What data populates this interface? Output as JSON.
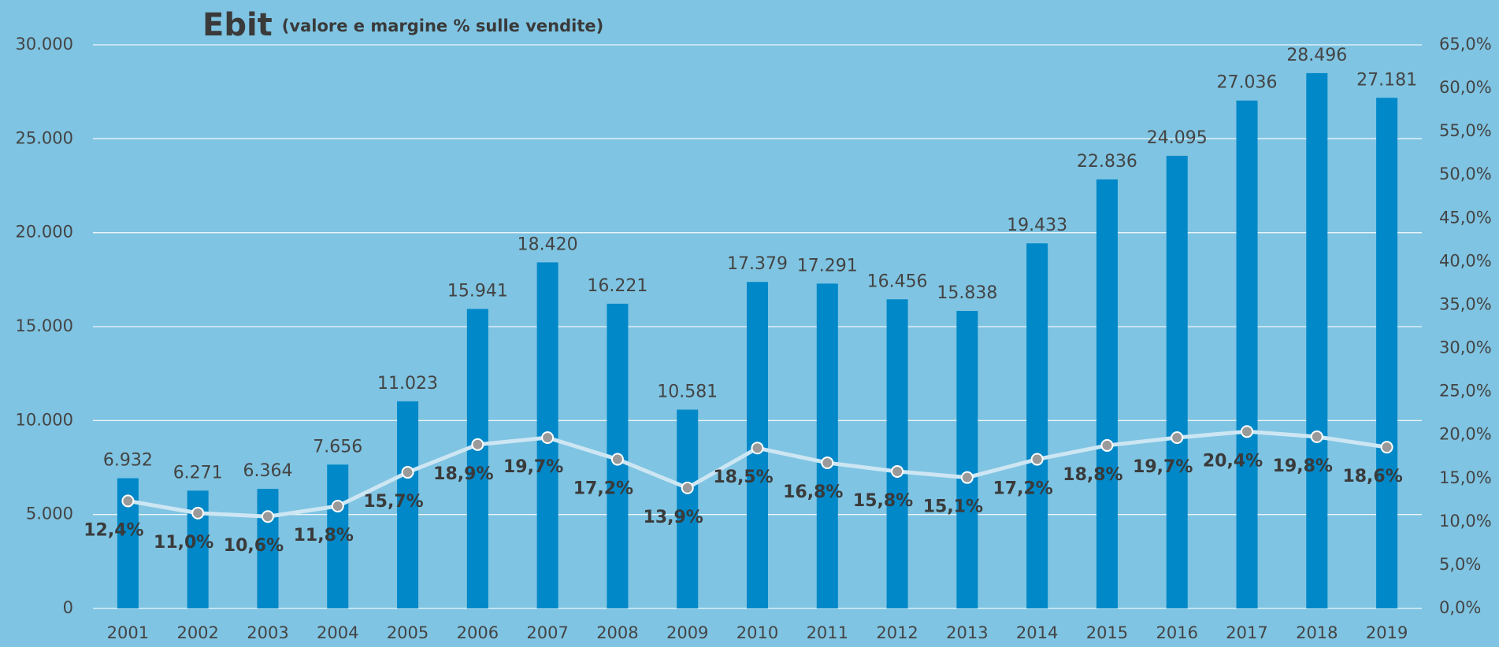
{
  "chart_data": {
    "type": "bar_line",
    "title": "Ebit",
    "subtitle": "(valore e margine % sulle vendite)",
    "categories": [
      "2001",
      "2002",
      "2003",
      "2004",
      "2005",
      "2006",
      "2007",
      "2008",
      "2009",
      "2010",
      "2011",
      "2012",
      "2013",
      "2014",
      "2015",
      "2016",
      "2017",
      "2018",
      "2019"
    ],
    "series": [
      {
        "type": "bar",
        "color": "#0088c8",
        "values": [
          6932,
          6271,
          6364,
          7656,
          11023,
          15941,
          18420,
          16221,
          10581,
          17379,
          17291,
          16456,
          15838,
          19433,
          22836,
          24095,
          27036,
          28496,
          27181
        ],
        "value_labels": [
          "6.932",
          "6.271",
          "6.364",
          "7.656",
          "11.023",
          "15.941",
          "18.420",
          "16.221",
          "10.581",
          "17.379",
          "17.291",
          "16.456",
          "15.838",
          "19.433",
          "22.836",
          "24.095",
          "27.036",
          "28.496",
          "27.181"
        ]
      },
      {
        "type": "line",
        "axis": "y2",
        "color": "#cde6f3",
        "marker_color": "#9a9a9a",
        "values": [
          12.4,
          11.0,
          10.6,
          11.8,
          15.7,
          18.9,
          19.7,
          17.2,
          13.9,
          18.5,
          16.8,
          15.8,
          15.1,
          17.2,
          18.8,
          19.7,
          20.4,
          19.8,
          18.6
        ],
        "value_labels": [
          "12,4%",
          "11,0%",
          "10,6%",
          "11,8%",
          "15,7%",
          "18,9%",
          "19,7%",
          "17,2%",
          "13,9%",
          "18,5%",
          "16,8%",
          "15,8%",
          "15,1%",
          "17,2%",
          "18,8%",
          "19,7%",
          "20,4%",
          "19,8%",
          "18,6%"
        ]
      }
    ],
    "ylim": [
      0,
      30000
    ],
    "yticks": [
      0,
      {
        "value": 5000,
        "label": "5.000"
      },
      {
        "value": 10000,
        "label": "10.000"
      },
      {
        "value": 15000,
        "label": "15.000"
      },
      {
        "value": 20000,
        "label": "20.000"
      },
      {
        "value": 25000,
        "label": "25.000"
      },
      {
        "value": 30000,
        "label": "30.000"
      }
    ],
    "y2lim": [
      0,
      65
    ],
    "y2ticks": [
      {
        "value": 0,
        "label": "0,0%"
      },
      {
        "value": 5,
        "label": "5,0%"
      },
      {
        "value": 10,
        "label": "10,0%"
      },
      {
        "value": 15,
        "label": "15,0%"
      },
      {
        "value": 20,
        "label": "20,0%"
      },
      {
        "value": 25,
        "label": "25,0%"
      },
      {
        "value": 30,
        "label": "30,0%"
      },
      {
        "value": 35,
        "label": "35,0%"
      },
      {
        "value": 40,
        "label": "40,0%"
      },
      {
        "value": 45,
        "label": "45,0%"
      },
      {
        "value": 50,
        "label": "50,0%"
      },
      {
        "value": 55,
        "label": "55,0%"
      },
      {
        "value": 60,
        "label": "60,0%"
      },
      {
        "value": 65,
        "label": "65,0%"
      }
    ],
    "grid": true
  }
}
